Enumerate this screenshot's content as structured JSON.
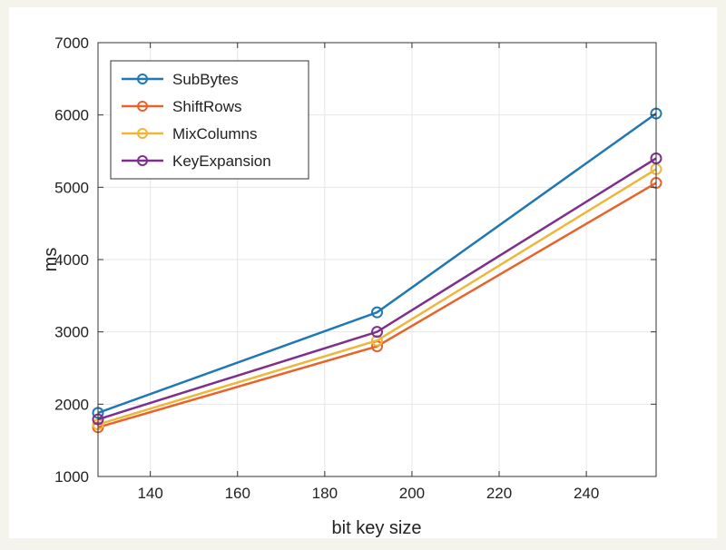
{
  "chart_data": {
    "type": "line",
    "title": "",
    "xlabel": "bit key size",
    "ylabel": "ms",
    "xlim": [
      128,
      256
    ],
    "ylim": [
      1000,
      7000
    ],
    "xticks": [
      140,
      160,
      180,
      200,
      220,
      240
    ],
    "yticks": [
      1000,
      2000,
      3000,
      4000,
      5000,
      6000,
      7000
    ],
    "grid": true,
    "legend_position": "top-left",
    "x": [
      128,
      192,
      256
    ],
    "series": [
      {
        "name": "SubBytes",
        "color": "#1f77b4",
        "values": [
          1880,
          3270,
          6020
        ]
      },
      {
        "name": "ShiftRows",
        "color": "#e8632b",
        "values": [
          1680,
          2800,
          5060
        ]
      },
      {
        "name": "MixColumns",
        "color": "#f0b63a",
        "values": [
          1720,
          2880,
          5250
        ]
      },
      {
        "name": "KeyExpansion",
        "color": "#7e2f8e",
        "values": [
          1790,
          3000,
          5400
        ]
      }
    ]
  }
}
